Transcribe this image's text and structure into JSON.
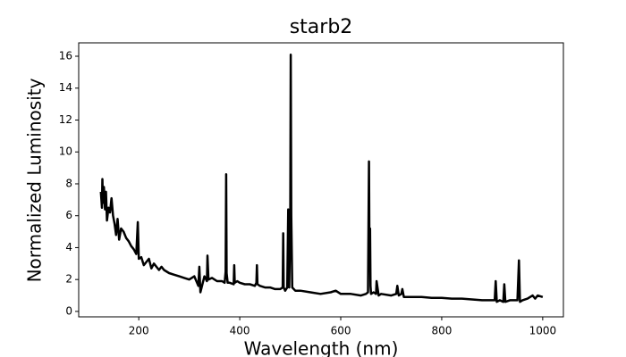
{
  "chart_data": {
    "type": "line",
    "title": "starb2",
    "x_label": "Wavelength (nm)",
    "y_label": "Normalized Luminosity",
    "x": [
      125,
      127,
      128,
      129,
      131,
      133,
      135,
      137,
      140,
      143,
      146,
      149,
      152,
      155,
      158,
      161,
      165,
      170,
      175,
      180,
      185,
      190,
      195,
      198,
      200,
      205,
      210,
      215,
      220,
      225,
      230,
      235,
      240,
      245,
      250,
      260,
      270,
      280,
      290,
      300,
      310,
      318,
      320,
      322,
      330,
      335,
      336,
      338,
      345,
      355,
      365,
      370,
      372,
      373,
      374,
      376,
      380,
      388,
      389,
      390,
      395,
      400,
      410,
      420,
      430,
      433,
      434,
      435,
      440,
      450,
      460,
      470,
      480,
      485,
      486,
      487,
      490,
      494,
      496,
      498,
      500,
      501,
      502,
      504,
      510,
      520,
      540,
      560,
      580,
      590,
      600,
      620,
      640,
      650,
      654,
      656,
      657,
      658,
      659,
      660,
      665,
      670,
      671,
      675,
      680,
      700,
      710,
      712,
      715,
      720,
      722,
      725,
      740,
      760,
      780,
      800,
      820,
      840,
      860,
      880,
      900,
      905,
      907,
      909,
      915,
      922,
      924,
      926,
      935,
      950,
      953,
      955,
      960,
      970,
      980,
      985,
      990,
      1000
    ],
    "series": [
      {
        "color": "#000000",
        "values": [
          7.5,
          6.5,
          8.3,
          6.8,
          7.8,
          6.4,
          7.5,
          5.7,
          6.5,
          6.2,
          7.1,
          6.0,
          5.5,
          4.8,
          5.8,
          4.5,
          5.2,
          5.0,
          4.6,
          4.4,
          4.1,
          3.9,
          3.6,
          5.6,
          3.3,
          3.4,
          2.9,
          3.1,
          3.3,
          2.7,
          3.0,
          2.8,
          2.6,
          2.8,
          2.6,
          2.4,
          2.3,
          2.2,
          2.1,
          2.0,
          2.2,
          1.6,
          2.8,
          1.2,
          2.2,
          1.9,
          3.5,
          2.0,
          2.1,
          1.9,
          1.9,
          1.8,
          2.5,
          8.6,
          2.4,
          1.8,
          1.8,
          1.7,
          2.9,
          1.8,
          1.9,
          1.8,
          1.7,
          1.7,
          1.6,
          1.8,
          2.9,
          1.7,
          1.6,
          1.5,
          1.5,
          1.4,
          1.4,
          1.5,
          4.9,
          1.5,
          1.3,
          1.5,
          6.4,
          1.5,
          6,
          16.1,
          6,
          1.5,
          1.3,
          1.3,
          1.2,
          1.1,
          1.2,
          1.3,
          1.1,
          1.1,
          1.0,
          1.1,
          1.2,
          9.4,
          3,
          5.2,
          1.6,
          1.1,
          1.2,
          1.1,
          1.9,
          1.0,
          1.1,
          1.0,
          1.1,
          1.6,
          1.0,
          1.1,
          1.4,
          0.9,
          0.9,
          0.9,
          0.85,
          0.85,
          0.8,
          0.8,
          0.75,
          0.7,
          0.7,
          0.7,
          1.9,
          0.6,
          0.7,
          0.6,
          1.7,
          0.6,
          0.7,
          0.7,
          3.2,
          0.6,
          0.7,
          0.8,
          1.0,
          0.8,
          1.0,
          0.9
        ]
      }
    ],
    "xlim": [
      81,
      1041
    ],
    "ylim": [
      -0.34,
      16.84
    ],
    "xticks": [
      200,
      400,
      600,
      800,
      1000
    ],
    "yticks": [
      0,
      2,
      4,
      6,
      8,
      10,
      12,
      14,
      16
    ]
  }
}
